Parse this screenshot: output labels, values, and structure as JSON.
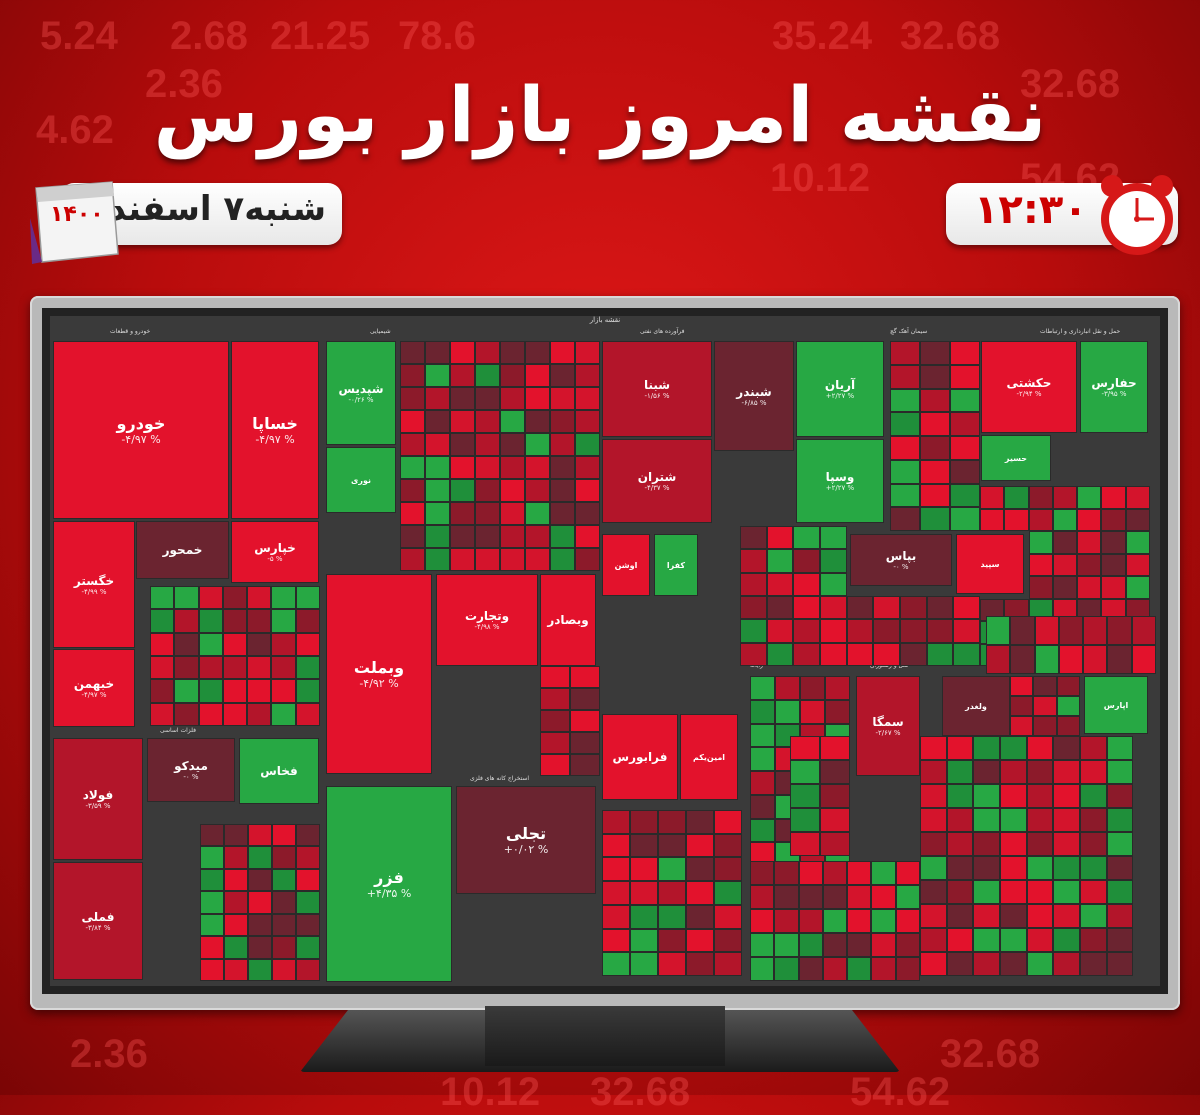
{
  "title": "نقشه امروز بازار بورس",
  "date": {
    "day_text": "شنبه۷ اسفند",
    "year": "۱۴۰۰"
  },
  "time": "۱۲:۳۰",
  "background_numbers": [
    "5.24",
    "2.68",
    "21.25",
    "78.6",
    "35.24",
    "32.68",
    "2.36",
    "32.68",
    "4.62",
    "10.12",
    "54.62",
    "2.36",
    "32.68",
    "10.12",
    "32.68",
    "54.62"
  ],
  "colors": {
    "bg_red": "#c00c0c",
    "up": "#27a844",
    "down_strong": "#e0102a",
    "down_mid": "#b3152a",
    "neutral": "#6b2430"
  },
  "treemap": {
    "header": "نقشه بازار",
    "sectors": [
      "خودرو و قطعات",
      "شیمیایی",
      "فرآورده های نفتی",
      "سیمان آهک گچ",
      "حمل و نقل انبارداری و ارتباطات",
      "بانکها و موسسات اعتباری",
      "فلزات اساسی",
      "استخراج کانه های فلزی",
      "رایانه",
      "هتل و رستوران"
    ],
    "tiles": [
      {
        "name": "خودرو",
        "pct": "-۴/۹۷ %",
        "color": "#e3122c"
      },
      {
        "name": "خساپا",
        "pct": "-۴/۹۷ %",
        "color": "#e3122c"
      },
      {
        "name": "خگستر",
        "pct": "-۴/۹۹ %",
        "color": "#e3122c"
      },
      {
        "name": "خمحور",
        "pct": "",
        "color": "#6b2430"
      },
      {
        "name": "خپارس",
        "pct": "-۵ %",
        "color": "#e3122c"
      },
      {
        "name": "خبهمن",
        "pct": "-۴/۹۷ %",
        "color": "#e3122c"
      },
      {
        "name": "فولاد",
        "pct": "-۳/۵۹ %",
        "color": "#b3152a"
      },
      {
        "name": "میدکو",
        "pct": "-۰ %",
        "color": "#6b2430"
      },
      {
        "name": "فخاس",
        "pct": "",
        "color": "#27a844"
      },
      {
        "name": "فملی",
        "pct": "-۳/۸۴ %",
        "color": "#b3152a"
      },
      {
        "name": "شپدیس",
        "pct": "-۰/۲۶ %",
        "color": "#27a844"
      },
      {
        "name": "نوری",
        "pct": "",
        "color": "#27a844"
      },
      {
        "name": "وبملت",
        "pct": "-۴/۹۲ %",
        "color": "#e3122c"
      },
      {
        "name": "وتجارت",
        "pct": "-۴/۹۸ %",
        "color": "#e3122c"
      },
      {
        "name": "وبصادر",
        "pct": "",
        "color": "#e3122c"
      },
      {
        "name": "فزر",
        "pct": "+۴/۳۵ %",
        "color": "#27a844"
      },
      {
        "name": "تجلی",
        "pct": "+۰/۰۲ %",
        "color": "#6b2430"
      },
      {
        "name": "شبنا",
        "pct": "-۱/۵۶ %",
        "color": "#b3152a"
      },
      {
        "name": "شبندر",
        "pct": "-۶/۸۵ %",
        "color": "#6b2430"
      },
      {
        "name": "شتران",
        "pct": "-۴/۳۷ %",
        "color": "#b3152a"
      },
      {
        "name": "آریان",
        "pct": "+۲/۲۷ %",
        "color": "#27a844"
      },
      {
        "name": "وسپا",
        "pct": "+۲/۲۷ %",
        "color": "#27a844"
      },
      {
        "name": "حکشتی",
        "pct": "-۲/۹۴ %",
        "color": "#e3122c"
      },
      {
        "name": "حفارس",
        "pct": "-۳/۹۵ %",
        "color": "#27a844"
      },
      {
        "name": "حسیر",
        "pct": "",
        "color": "#27a844"
      },
      {
        "name": "بپاس",
        "pct": "-۰ %",
        "color": "#6b2430"
      },
      {
        "name": "سپید",
        "pct": "",
        "color": "#e3122c"
      },
      {
        "name": "سمگا",
        "pct": "-۲/۶۷ %",
        "color": "#b3152a"
      },
      {
        "name": "ولغدر",
        "pct": "",
        "color": "#6b2430"
      },
      {
        "name": "اپارس",
        "pct": "",
        "color": "#27a844"
      },
      {
        "name": "فرابورس",
        "pct": "",
        "color": "#e3122c"
      },
      {
        "name": "امین‌یکم",
        "pct": "",
        "color": "#e3122c"
      },
      {
        "name": "اوشن",
        "pct": "",
        "color": "#e3122c"
      },
      {
        "name": "کفرا",
        "pct": "",
        "color": "#27a844"
      }
    ]
  }
}
